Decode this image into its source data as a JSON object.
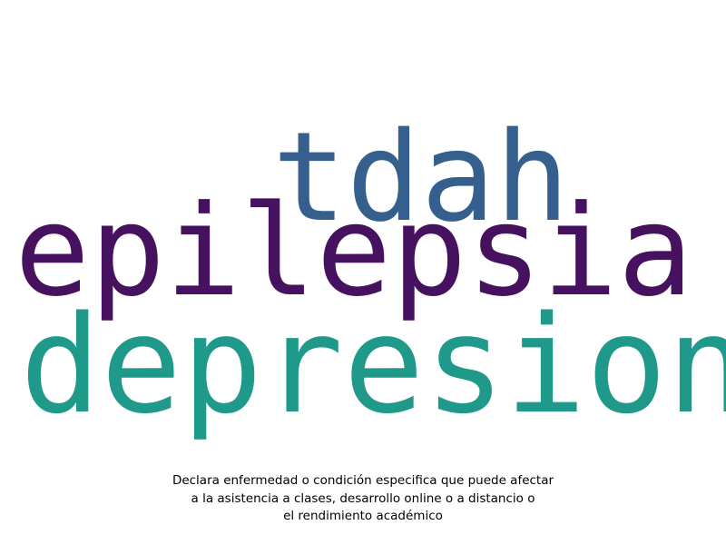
{
  "wordcloud": {
    "words": [
      {
        "text": "tdah",
        "color": "#355f8d"
      },
      {
        "text": "epilepsia",
        "color": "#46115f"
      },
      {
        "text": "depresion",
        "color": "#1f9a8a"
      }
    ]
  },
  "caption": {
    "lines": [
      "Declara enfermedad o condición especifica que puede afectar",
      "a la asistencia a clases, desarrollo online o a distancio o",
      "el rendimiento académico"
    ]
  }
}
